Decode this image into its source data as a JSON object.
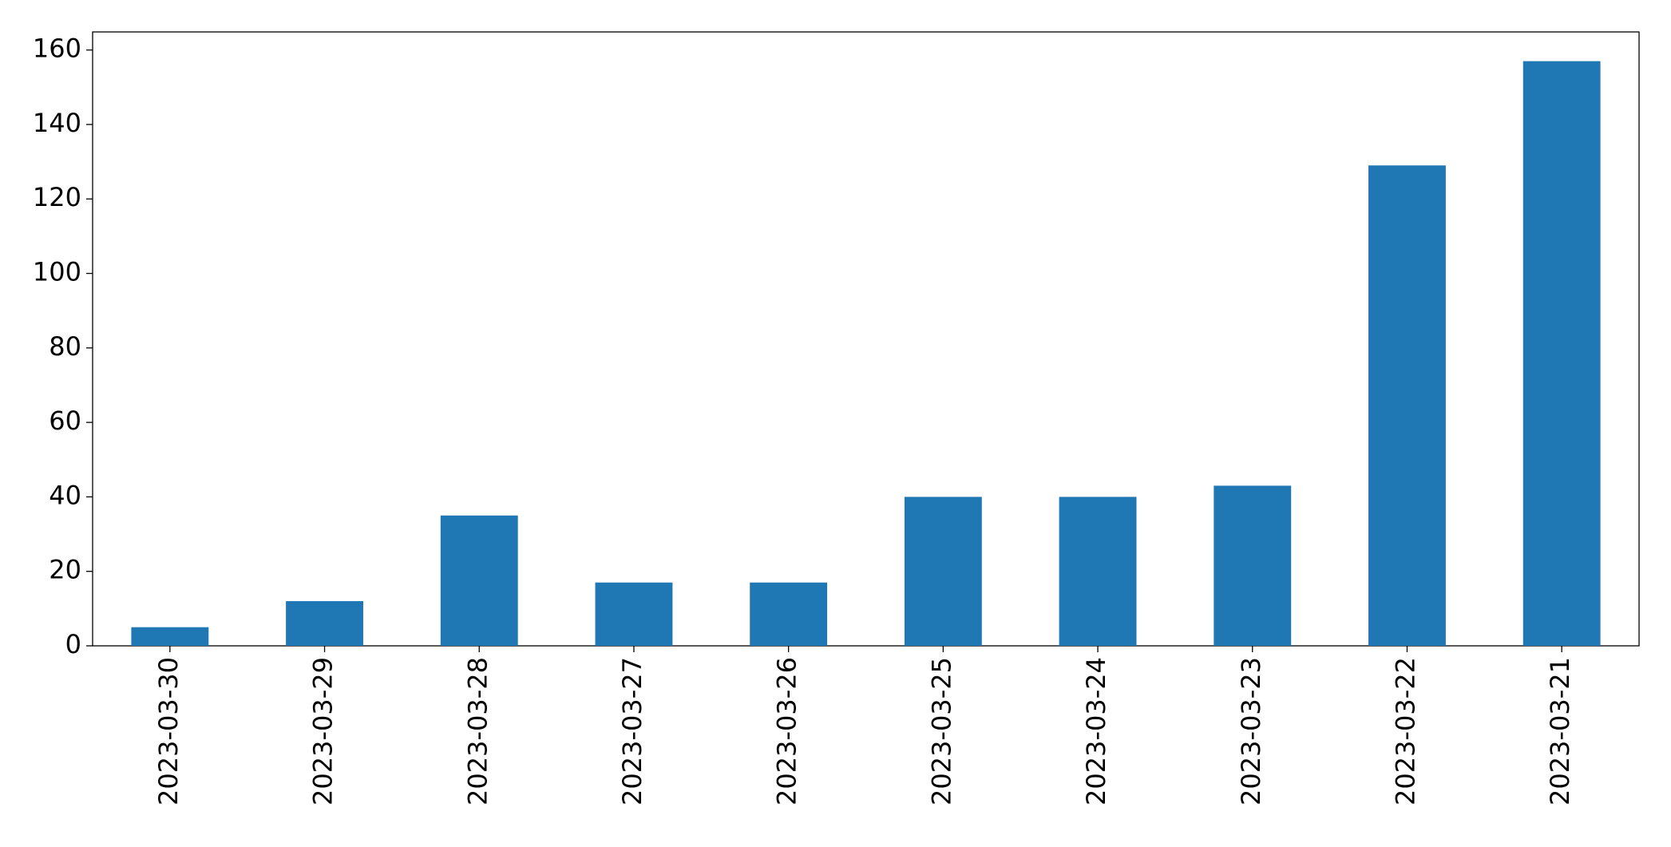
{
  "chart_data": {
    "type": "bar",
    "categories": [
      "2023-03-30",
      "2023-03-29",
      "2023-03-28",
      "2023-03-27",
      "2023-03-26",
      "2023-03-25",
      "2023-03-24",
      "2023-03-23",
      "2023-03-22",
      "2023-03-21"
    ],
    "values": [
      5,
      12,
      35,
      17,
      17,
      40,
      40,
      43,
      129,
      157
    ],
    "color": "#1f77b4",
    "ylim": [
      0,
      164.85
    ],
    "yticks": [
      0,
      20,
      40,
      60,
      80,
      100,
      120,
      140,
      160
    ],
    "grid": false
  }
}
